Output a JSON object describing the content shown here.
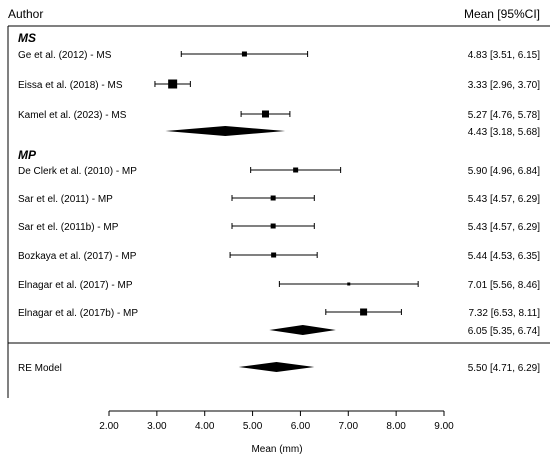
{
  "chart_data": {
    "type": "forest",
    "header": {
      "left": "Author",
      "right": "Mean [95%CI]"
    },
    "xlabel": "Mean (mm)",
    "xlim": [
      2.0,
      9.0
    ],
    "xticks": [
      "2.00",
      "3.00",
      "4.00",
      "5.00",
      "6.00",
      "7.00",
      "8.00",
      "9.00"
    ],
    "groups": [
      {
        "label": "MS",
        "studies": [
          {
            "author": "Ge et al. (2012) - MS",
            "mean": 4.83,
            "lo": 3.51,
            "hi": 6.15,
            "ci_text": "4.83 [3.51, 6.15]",
            "weight": "small"
          },
          {
            "author": "Eissa et al. (2018) - MS",
            "mean": 3.33,
            "lo": 2.96,
            "hi": 3.7,
            "ci_text": "3.33 [2.96, 3.70]",
            "weight": "large"
          },
          {
            "author": "Kamel et al. (2023) - MS",
            "mean": 5.27,
            "lo": 4.76,
            "hi": 5.78,
            "ci_text": "5.27 [4.76, 5.78]",
            "weight": "medium"
          }
        ],
        "summary": {
          "mean": 4.43,
          "lo": 3.18,
          "hi": 5.68,
          "ci_text": "4.43 [3.18, 5.68]"
        }
      },
      {
        "label": "MP",
        "studies": [
          {
            "author": "De Clerk et al. (2010) - MP",
            "mean": 5.9,
            "lo": 4.96,
            "hi": 6.84,
            "ci_text": "5.90 [4.96, 6.84]",
            "weight": "small"
          },
          {
            "author": "Sar et el. (2011) - MP",
            "mean": 5.43,
            "lo": 4.57,
            "hi": 6.29,
            "ci_text": "5.43 [4.57, 6.29]",
            "weight": "small"
          },
          {
            "author": "Sar et el. (2011b) - MP",
            "mean": 5.43,
            "lo": 4.57,
            "hi": 6.29,
            "ci_text": "5.43 [4.57, 6.29]",
            "weight": "small"
          },
          {
            "author": "Bozkaya et al. (2017) - MP",
            "mean": 5.44,
            "lo": 4.53,
            "hi": 6.35,
            "ci_text": "5.44 [4.53, 6.35]",
            "weight": "small"
          },
          {
            "author": "Elnagar et al. (2017) - MP",
            "mean": 7.01,
            "lo": 5.56,
            "hi": 8.46,
            "ci_text": "7.01 [5.56, 8.46]",
            "weight": "tiny"
          },
          {
            "author": "Elnagar et al. (2017b) - MP",
            "mean": 7.32,
            "lo": 6.53,
            "hi": 8.11,
            "ci_text": "7.32 [6.53, 8.11]",
            "weight": "medium"
          }
        ],
        "summary": {
          "mean": 6.05,
          "lo": 5.35,
          "hi": 6.74,
          "ci_text": "6.05 [5.35, 6.74]"
        }
      }
    ],
    "overall": {
      "label": "RE Model",
      "mean": 5.5,
      "lo": 4.71,
      "hi": 6.29,
      "ci_text": "5.50 [4.71, 6.29]"
    }
  }
}
